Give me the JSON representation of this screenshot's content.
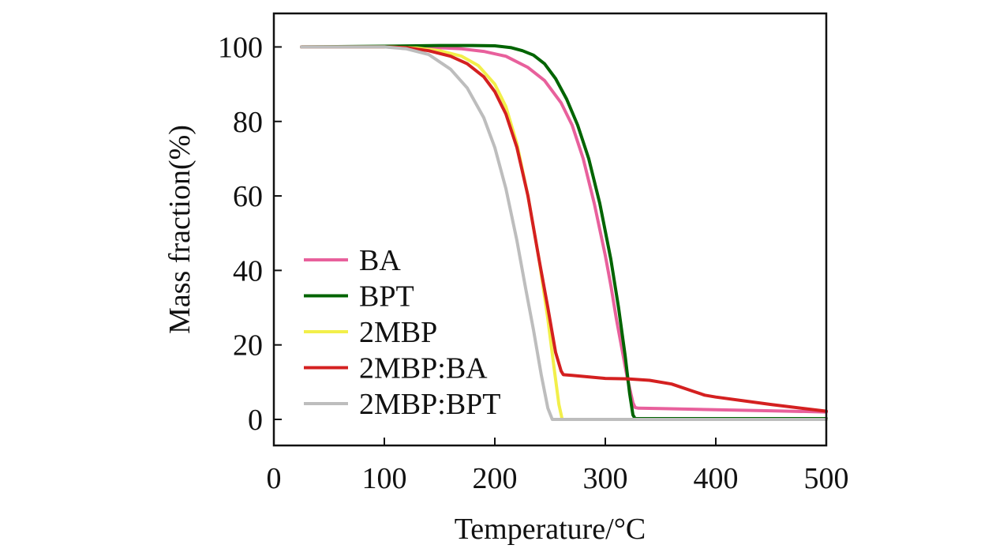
{
  "chart_data": {
    "type": "line",
    "title": "",
    "xlabel": "Temperature/°C",
    "ylabel": "Mass fraction(%)",
    "xlim": [
      0,
      500
    ],
    "ylim": [
      -7,
      109
    ],
    "xticks": [
      0,
      100,
      200,
      300,
      400,
      500
    ],
    "yticks": [
      0,
      20,
      40,
      60,
      80,
      100
    ],
    "grid": false,
    "legend_position": "bottom-left",
    "series": [
      {
        "name": "BA",
        "color": "#e8609c",
        "x": [
          25,
          100,
          150,
          170,
          190,
          210,
          230,
          245,
          260,
          270,
          280,
          290,
          300,
          305,
          310,
          315,
          320,
          325,
          327,
          330,
          350,
          400,
          450,
          500
        ],
        "y": [
          100,
          100,
          99.8,
          99.5,
          98.8,
          97.5,
          94.5,
          91,
          85,
          79,
          70,
          58,
          44,
          36,
          27,
          19,
          11,
          4.5,
          3.2,
          3.0,
          2.9,
          2.6,
          2.3,
          2.0
        ]
      },
      {
        "name": "BPT",
        "color": "#006400",
        "x": [
          25,
          100,
          150,
          180,
          200,
          215,
          225,
          235,
          245,
          255,
          265,
          275,
          285,
          295,
          305,
          312,
          318,
          322,
          325,
          327,
          350,
          400,
          450,
          500
        ],
        "y": [
          100,
          100.2,
          100.4,
          100.4,
          100.3,
          99.8,
          99,
          97.8,
          95.5,
          91.5,
          86,
          79,
          70,
          58,
          43,
          30,
          17,
          7,
          1.2,
          0.2,
          0.2,
          0.2,
          0.2,
          0.2
        ]
      },
      {
        "name": "2MBP",
        "color": "#f2ef4a",
        "x": [
          25,
          100,
          130,
          150,
          170,
          185,
          200,
          210,
          220,
          230,
          240,
          248,
          254,
          258,
          261,
          270,
          300,
          400,
          500
        ],
        "y": [
          100,
          100,
          99.7,
          99,
          97.5,
          95,
          90,
          84,
          74,
          60,
          43,
          27,
          13,
          4,
          0,
          0,
          0,
          0,
          0
        ]
      },
      {
        "name": "2MBP:BA",
        "color": "#d42020",
        "x": [
          25,
          100,
          120,
          140,
          160,
          175,
          190,
          200,
          210,
          220,
          230,
          240,
          248,
          255,
          260,
          262,
          270,
          300,
          320,
          340,
          360,
          380,
          390,
          400,
          450,
          500
        ],
        "y": [
          100,
          100,
          99.8,
          99,
          97.5,
          95.5,
          92,
          88,
          82,
          73,
          60,
          43,
          30,
          18,
          13,
          12,
          11.8,
          11,
          10.9,
          10.5,
          9.5,
          7.5,
          6.5,
          6,
          4,
          2.2
        ]
      },
      {
        "name": "2MBP:BPT",
        "color": "#bdbdbd",
        "x": [
          25,
          100,
          120,
          140,
          160,
          175,
          190,
          200,
          210,
          220,
          228,
          235,
          242,
          248,
          252,
          270,
          300,
          400,
          500
        ],
        "y": [
          100,
          100,
          99.5,
          98,
          94,
          89,
          81,
          73,
          62,
          48,
          35,
          24,
          12,
          3,
          0,
          0,
          0,
          0,
          0
        ]
      }
    ]
  }
}
